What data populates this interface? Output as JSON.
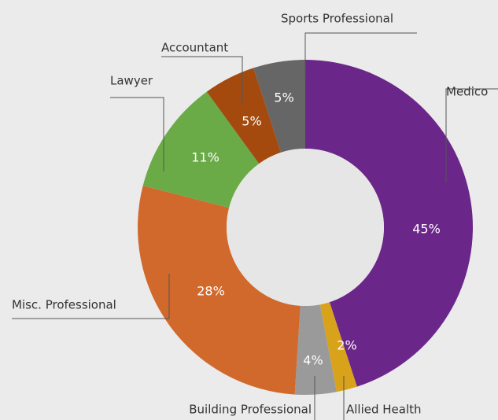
{
  "chart_data": {
    "type": "pie",
    "donut": true,
    "categories": [
      "Medico",
      "Allied Health",
      "Building Professional",
      "Misc. Professional",
      "Lawyer",
      "Accountant",
      "Sports Professional"
    ],
    "values": [
      45,
      2,
      4,
      28,
      11,
      5,
      5
    ],
    "value_labels": [
      "45%",
      "2%",
      "4%",
      "28%",
      "11%",
      "5%",
      "5%"
    ],
    "colors": [
      "#6b268a",
      "#d9a21b",
      "#9a9a9a",
      "#d2692c",
      "#6aab48",
      "#a44a0e",
      "#666666"
    ]
  }
}
